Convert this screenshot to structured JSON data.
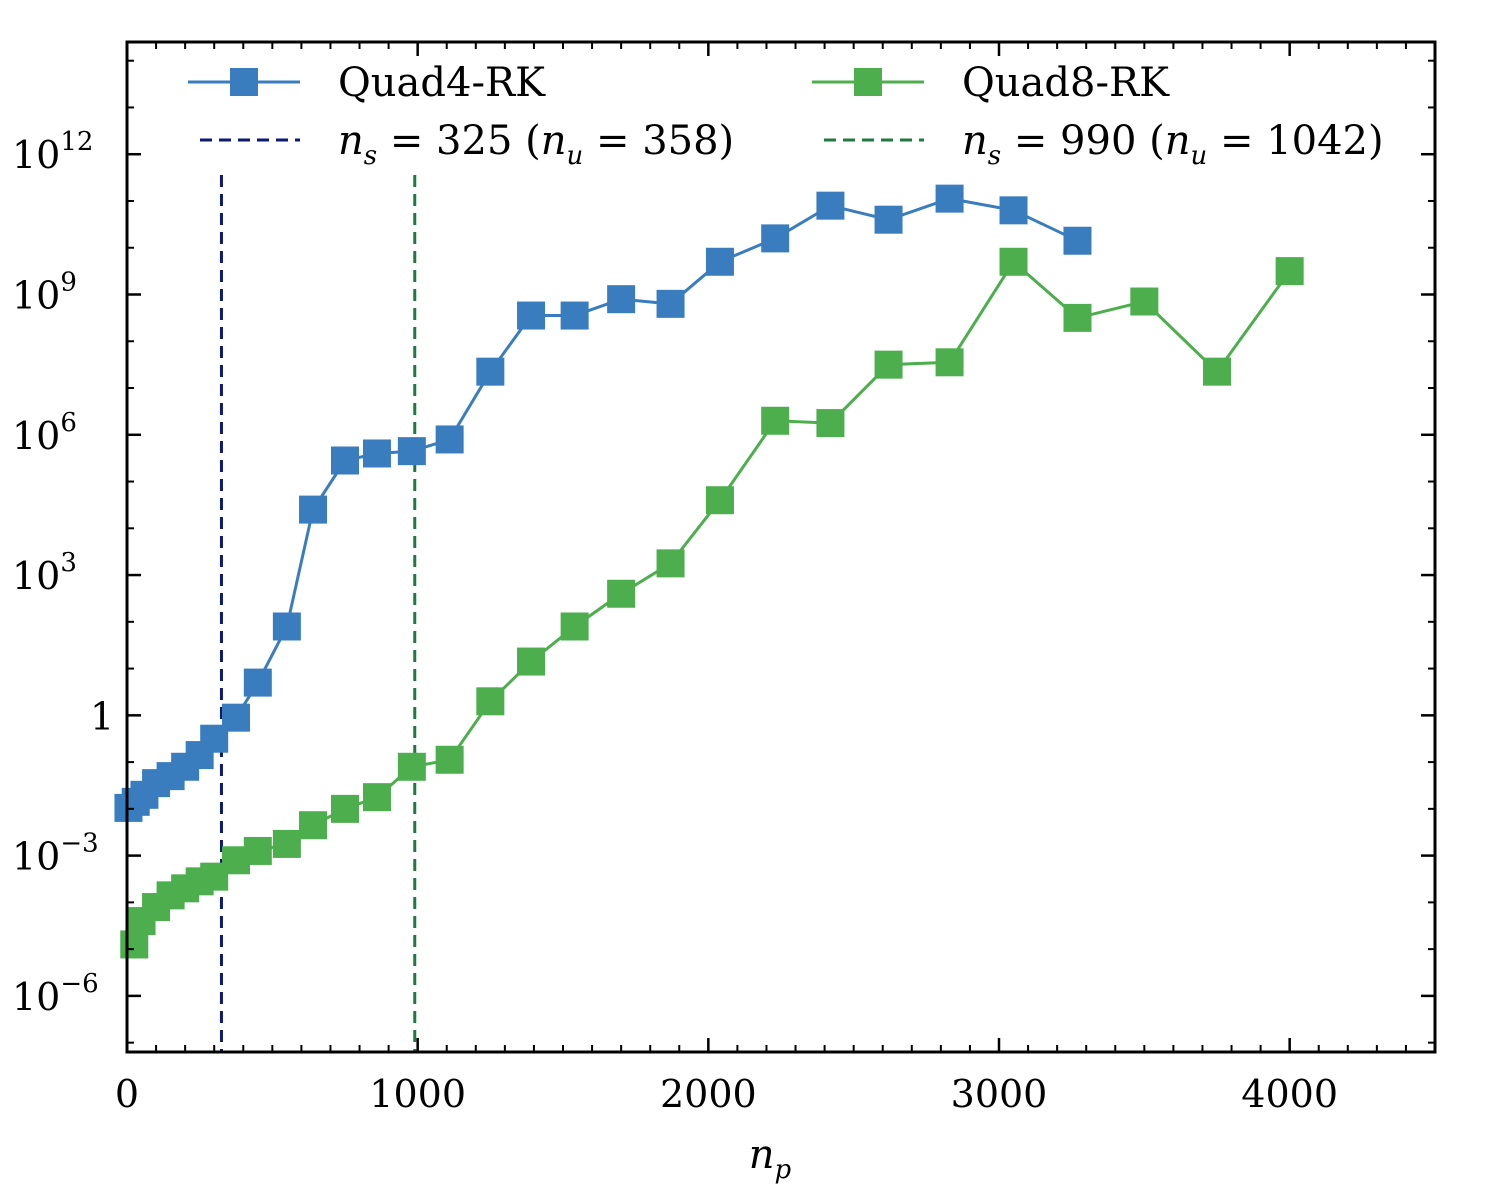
{
  "chart_data": {
    "type": "line",
    "xlabel": "n",
    "xlabel_sub": "p",
    "yscale": "log",
    "xlim": [
      0,
      4500
    ],
    "ylim_log10": [
      -7.2,
      14.4
    ],
    "legend_position": "top",
    "x_ticks": [
      {
        "value": 0,
        "label": "0"
      },
      {
        "value": 1000,
        "label": "1000"
      },
      {
        "value": 2000,
        "label": "2000"
      },
      {
        "value": 3000,
        "label": "3000"
      },
      {
        "value": 4000,
        "label": "4000"
      }
    ],
    "y_ticks": [
      {
        "value_log10": -6,
        "base": "10",
        "exp": "−6"
      },
      {
        "value_log10": -3,
        "base": "10",
        "exp": "−3"
      },
      {
        "value_log10": 0,
        "base": "1",
        "exp": ""
      },
      {
        "value_log10": 3,
        "base": "10",
        "exp": "3"
      },
      {
        "value_log10": 6,
        "base": "10",
        "exp": "6"
      },
      {
        "value_log10": 9,
        "base": "10",
        "exp": "9"
      },
      {
        "value_log10": 12,
        "base": "10",
        "exp": "12"
      }
    ],
    "series": [
      {
        "name": "Quad4-RK",
        "color": "#3a7dbf",
        "x": [
          5,
          30,
          60,
          100,
          150,
          200,
          250,
          300,
          375,
          450,
          550,
          640,
          750,
          860,
          980,
          1110,
          1250,
          1390,
          1540,
          1700,
          1870,
          2040,
          2230,
          2420,
          2620,
          2830,
          3050,
          3270
        ],
        "y_log10": [
          -1.98,
          -1.85,
          -1.7,
          -1.45,
          -1.3,
          -1.1,
          -0.85,
          -0.5,
          -0.05,
          0.7,
          1.9,
          4.4,
          5.45,
          5.6,
          5.65,
          5.9,
          7.35,
          8.55,
          8.55,
          8.9,
          8.8,
          9.7,
          10.2,
          10.9,
          10.6,
          11.05,
          10.8,
          10.15
        ]
      },
      {
        "name": "Quad8-RK",
        "color": "#4cae4c",
        "x": [
          25,
          50,
          100,
          150,
          200,
          250,
          300,
          375,
          450,
          550,
          640,
          750,
          860,
          980,
          1110,
          1250,
          1390,
          1540,
          1700,
          1870,
          2040,
          2230,
          2420,
          2620,
          2830,
          3050,
          3270,
          3500,
          3750,
          4000
        ],
        "y_log10": [
          -4.9,
          -4.4,
          -4.1,
          -3.85,
          -3.7,
          -3.55,
          -3.45,
          -3.1,
          -2.9,
          -2.75,
          -2.35,
          -2.0,
          -1.75,
          -1.1,
          -0.95,
          0.3,
          1.15,
          1.9,
          2.6,
          3.25,
          4.6,
          6.3,
          6.25,
          7.5,
          7.55,
          9.7,
          8.5,
          8.85,
          7.35,
          9.5
        ]
      }
    ],
    "vlines": [
      {
        "x": 325,
        "color": "#0d1a73",
        "legend_prefix": "n",
        "legend_prefix_sub": "s",
        "legend_eq": " = 325 (",
        "legend_var": "n",
        "legend_var_sub": "u",
        "legend_tail": " = 358)"
      },
      {
        "x": 990,
        "color": "#1f7a3f",
        "legend_prefix": "n",
        "legend_prefix_sub": "s",
        "legend_eq": " = 990 (",
        "legend_var": "n",
        "legend_var_sub": "u",
        "legend_tail": " = 1042)"
      }
    ]
  }
}
